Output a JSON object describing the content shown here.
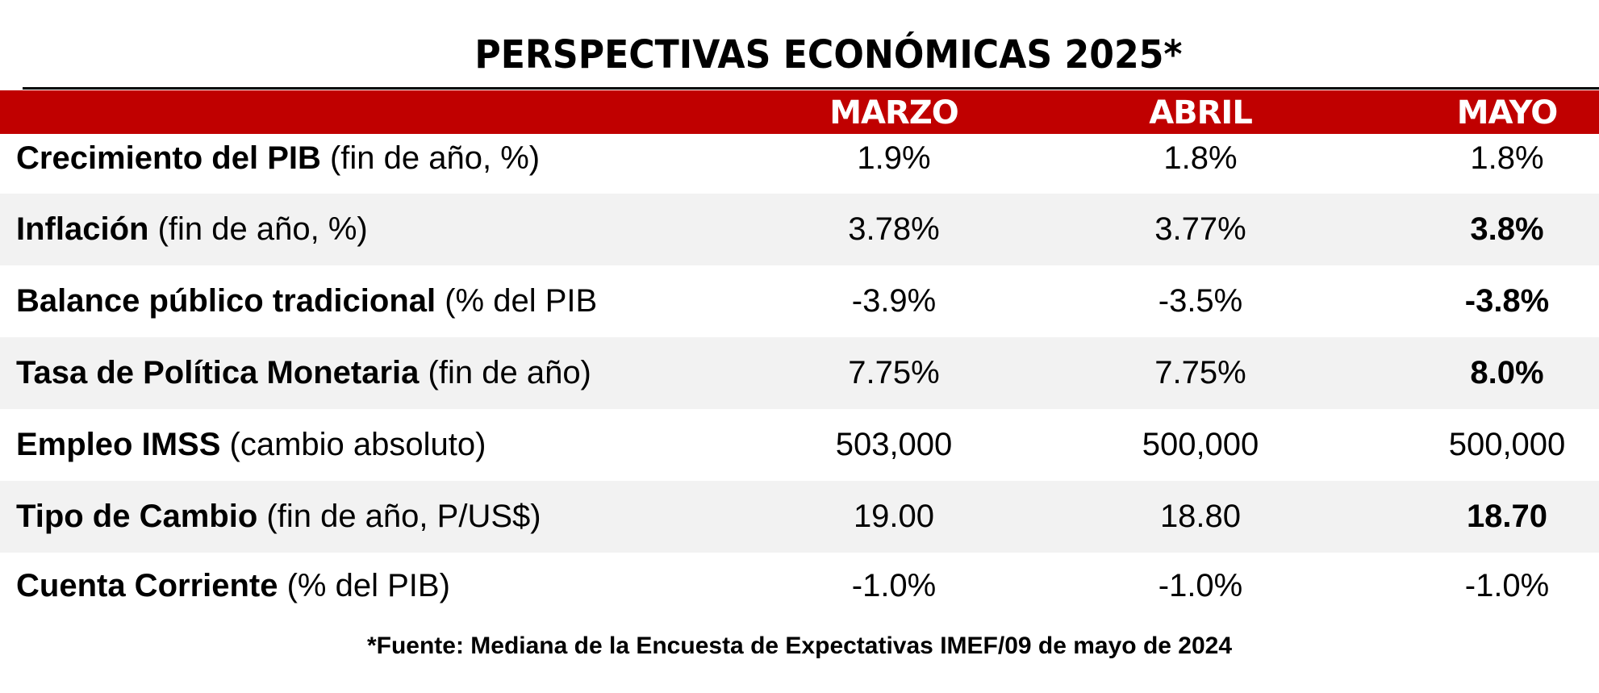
{
  "title": "PERSPECTIVAS ECONÓMICAS 2025*",
  "columns": [
    "MARZO",
    "ABRIL",
    "MAYO"
  ],
  "rows": [
    {
      "label_bold": "Crecimiento del PIB",
      "label_rest": " (fin de año, %)",
      "marzo": "1.9%",
      "abril": "1.8%",
      "mayo": "1.8%",
      "mayo_bold": false
    },
    {
      "label_bold": "Inflación",
      "label_rest": " (fin de año, %)",
      "marzo": "3.78%",
      "abril": "3.77%",
      "mayo": "3.8%",
      "mayo_bold": true
    },
    {
      "label_bold": "Balance público tradicional",
      "label_rest": " (% del PIB",
      "marzo": "-3.9%",
      "abril": "-3.5%",
      "mayo": "-3.8%",
      "mayo_bold": true
    },
    {
      "label_bold": "Tasa de Política Monetaria",
      "label_rest": " (fin de año)",
      "marzo": "7.75%",
      "abril": "7.75%",
      "mayo": "8.0%",
      "mayo_bold": true
    },
    {
      "label_bold": "Empleo IMSS",
      "label_rest": " (cambio absoluto)",
      "marzo": "503,000",
      "abril": "500,000",
      "mayo": "500,000",
      "mayo_bold": false
    },
    {
      "label_bold": "Tipo de Cambio",
      "label_rest": " (fin de año, P/US$)",
      "marzo": "19.00",
      "abril": "18.80",
      "mayo": "18.70",
      "mayo_bold": true
    },
    {
      "label_bold": "Cuenta Corriente",
      "label_rest": " (% del PIB)",
      "marzo": "-1.0%",
      "abril": "-1.0%",
      "mayo": "-1.0%",
      "mayo_bold": false
    }
  ],
  "source": "*Fuente: Mediana de la Encuesta de Expectativas IMEF/09 de mayo de 2024",
  "colors": {
    "header_band": "#c00000",
    "header_text": "#ffffff",
    "shaded_row": "#f2f2f2"
  }
}
